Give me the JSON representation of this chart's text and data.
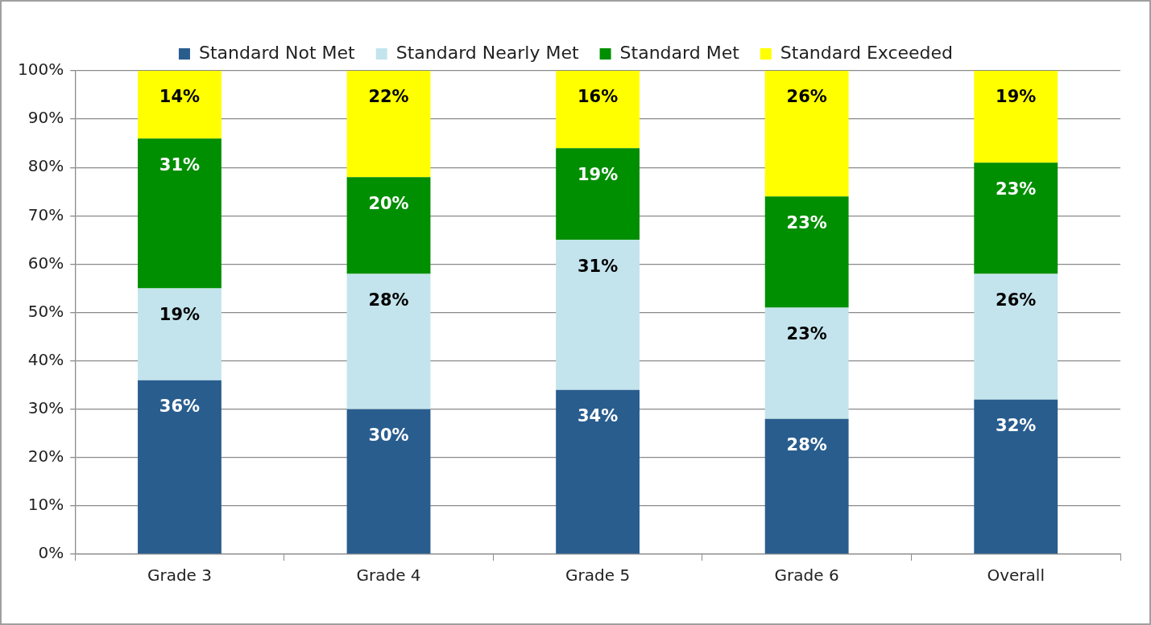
{
  "chart_data": {
    "type": "bar",
    "stacked": true,
    "categories": [
      "Grade 3",
      "Grade 4",
      "Grade 5",
      "Grade 6",
      "Overall"
    ],
    "series": [
      {
        "name": "Standard Not Met",
        "color": "#295d8e",
        "values": [
          36,
          30,
          34,
          28,
          32
        ],
        "value_labels": [
          "36%",
          "30%",
          "34%",
          "28%",
          "32%"
        ]
      },
      {
        "name": "Standard Nearly Met",
        "color": "#c3e4ec",
        "values": [
          19,
          28,
          31,
          23,
          26
        ],
        "value_labels": [
          "19%",
          "28%",
          "31%",
          "23%",
          "26%"
        ]
      },
      {
        "name": "Standard Met",
        "color": "#008f00",
        "values": [
          31,
          20,
          19,
          23,
          23
        ],
        "value_labels": [
          "31%",
          "20%",
          "19%",
          "23%",
          "23%"
        ]
      },
      {
        "name": "Standard Exceeded",
        "color": "#ffff00",
        "values": [
          14,
          22,
          16,
          26,
          19
        ],
        "value_labels": [
          "14%",
          "22%",
          "16%",
          "26%",
          "19%"
        ]
      }
    ],
    "ylim": [
      0,
      100
    ],
    "yticks": [
      {
        "value": 0,
        "label": "0%"
      },
      {
        "value": 10,
        "label": "10%"
      },
      {
        "value": 20,
        "label": "20%"
      },
      {
        "value": 30,
        "label": "30%"
      },
      {
        "value": 40,
        "label": "40%"
      },
      {
        "value": 50,
        "label": "50%"
      },
      {
        "value": 60,
        "label": "60%"
      },
      {
        "value": 70,
        "label": "70%"
      },
      {
        "value": 80,
        "label": "80%"
      },
      {
        "value": 90,
        "label": "90%"
      },
      {
        "value": 100,
        "label": "100%"
      }
    ],
    "grid": "y",
    "legend": "top"
  }
}
